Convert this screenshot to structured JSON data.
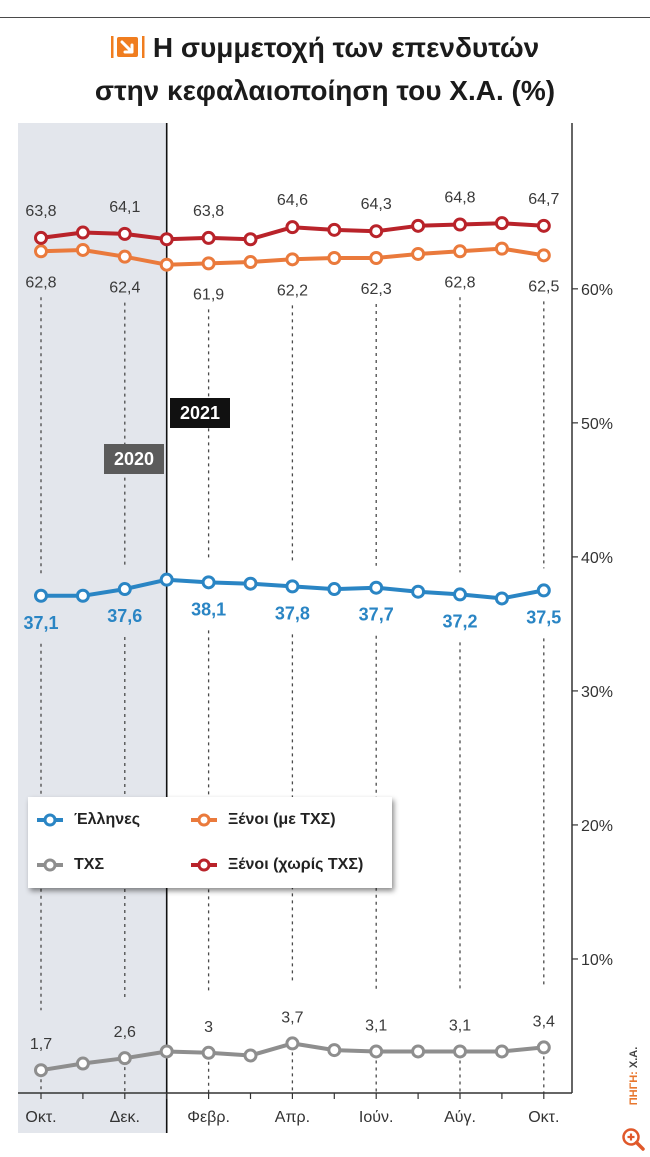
{
  "colors": {
    "accent": "#f07d1f",
    "shade_2020": "#e3e6ec",
    "year_2021_box": "#111111",
    "year_2020_box": "#5b5b5b"
  },
  "icons": {
    "title": "arrow-logo-icon",
    "zoom": "zoom-in-icon"
  },
  "source": {
    "label": "ΠΗΓΗ:",
    "value": "Χ.Α."
  },
  "chart_data": {
    "type": "line",
    "title_lines": [
      "Η συμμετοχή των επενδυτών",
      "στην κεφαλαιοποίηση του Χ.Α. (%)"
    ],
    "xlabel": "",
    "ylabel": "",
    "categories": [
      "Οκτ.",
      "",
      "Δεκ.",
      "",
      "Φεβρ.",
      "",
      "Απρ.",
      "",
      "Ιούν.",
      "",
      "Αύγ.",
      "",
      "Οκτ."
    ],
    "periods": [
      "2020",
      "2021"
    ],
    "ylim": [
      0,
      72
    ],
    "yticks": [
      10,
      20,
      30,
      40,
      50,
      60
    ],
    "ytick_labels": [
      "10%",
      "20%",
      "30%",
      "40%",
      "50%",
      "60%"
    ],
    "y_axis_side": "right",
    "grid": false,
    "legend": "lower-left",
    "series": [
      {
        "name": "Έλληνες",
        "color": "#2a85c4",
        "values": [
          37.1,
          37.1,
          37.6,
          38.3,
          38.1,
          38.0,
          37.8,
          37.6,
          37.7,
          37.4,
          37.2,
          36.9,
          37.5
        ],
        "labels": [
          "37,1",
          null,
          "37,6",
          null,
          "38,1",
          null,
          "37,8",
          null,
          "37,7",
          null,
          "37,2",
          null,
          "37,5"
        ]
      },
      {
        "name": "Ξένοι (με ΤΧΣ)",
        "color": "#ea7a3c",
        "values": [
          62.8,
          62.9,
          62.4,
          61.8,
          61.9,
          62.0,
          62.2,
          62.3,
          62.3,
          62.6,
          62.8,
          63.0,
          62.5
        ],
        "labels": [
          "62,8",
          null,
          "62,4",
          null,
          "61,9",
          null,
          "62,2",
          null,
          "62,3",
          null,
          "62,8",
          null,
          "62,5"
        ]
      },
      {
        "name": "ΤΧΣ",
        "color": "#8e8e8e",
        "values": [
          1.7,
          2.2,
          2.6,
          3.1,
          3.0,
          2.8,
          3.7,
          3.2,
          3.1,
          3.1,
          3.1,
          3.1,
          3.4
        ],
        "labels": [
          "1,7",
          null,
          "2,6",
          null,
          "3",
          null,
          "3,7",
          null,
          "3,1",
          null,
          "3,1",
          null,
          "3,4"
        ]
      },
      {
        "name": "Ξένοι (χωρίς ΤΧΣ)",
        "color": "#b9232a",
        "values": [
          63.8,
          64.2,
          64.1,
          63.7,
          63.8,
          63.7,
          64.6,
          64.4,
          64.3,
          64.7,
          64.8,
          64.9,
          64.7
        ],
        "labels": [
          "63,8",
          null,
          "64,1",
          null,
          "63,8",
          null,
          "64,6",
          null,
          "64,3",
          null,
          "64,8",
          null,
          "64,7"
        ]
      }
    ]
  }
}
